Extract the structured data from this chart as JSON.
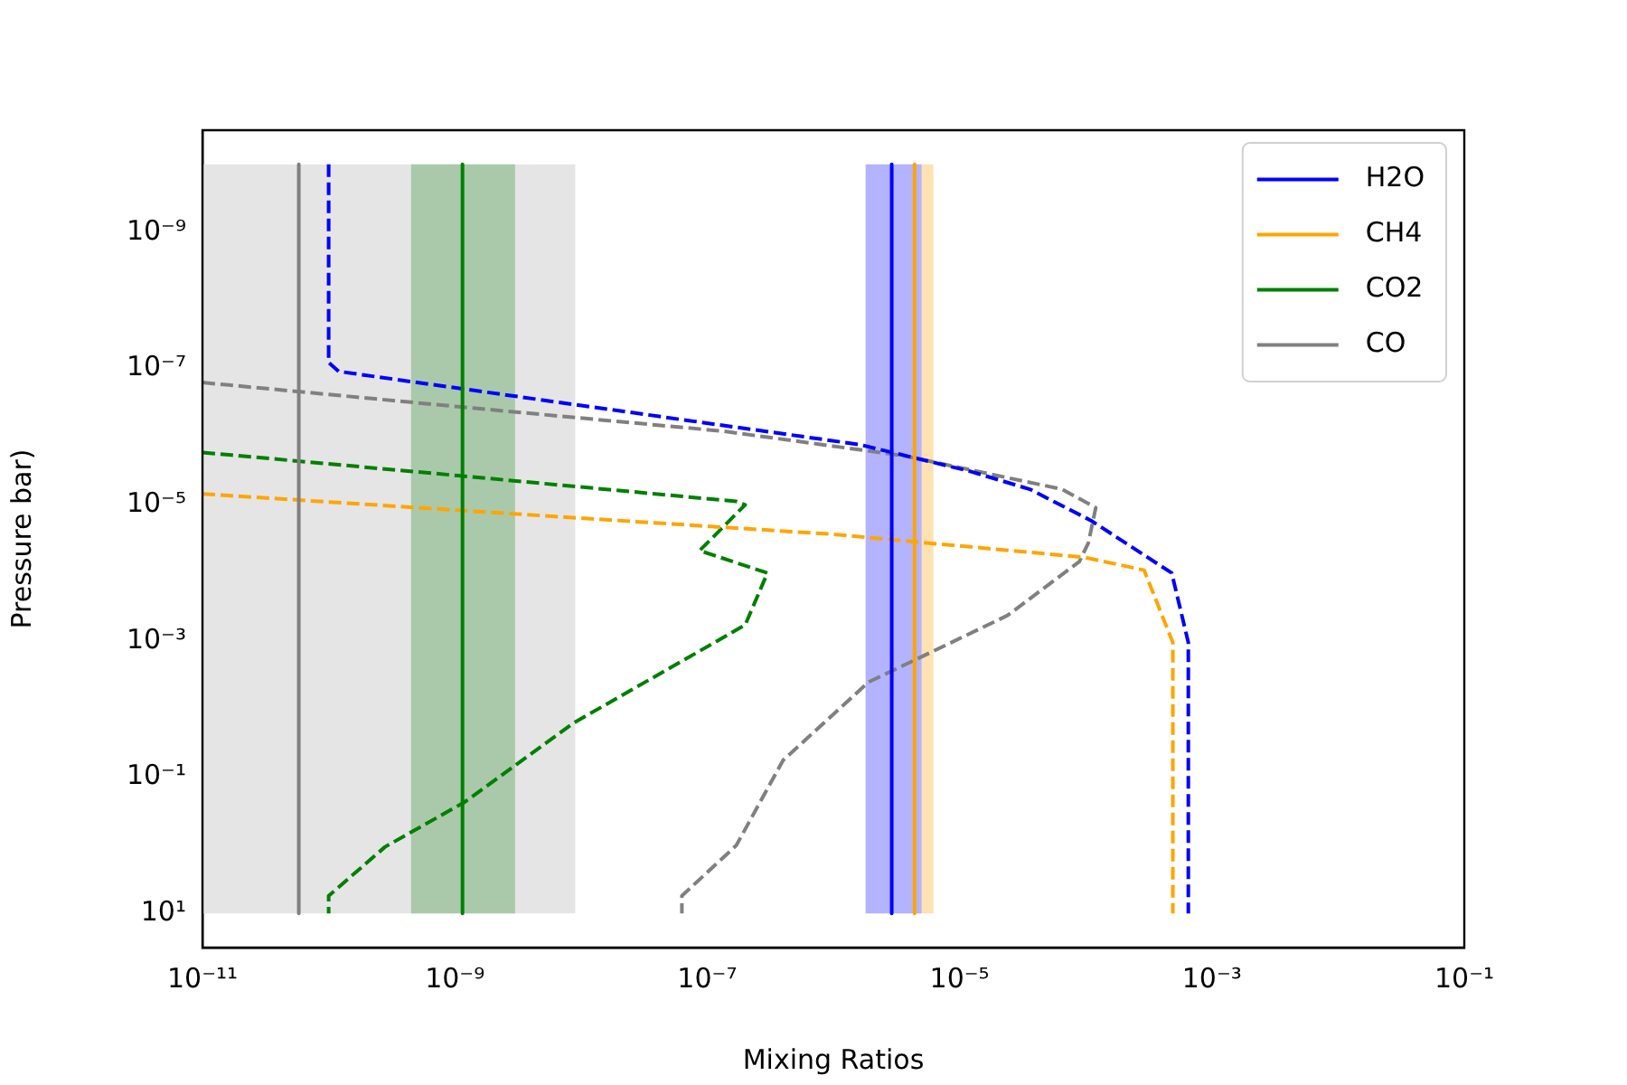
{
  "chart_data": {
    "type": "line",
    "xlabel": "Mixing Ratios",
    "ylabel": "Pressure bar)",
    "log": "xy",
    "legend": "top right",
    "marker": "none",
    "xlim": [
      1e-11,
      0.1
    ],
    "xticks": [
      {
        "value": 1e-11,
        "label": "10⁻¹¹"
      },
      {
        "value": 1e-09,
        "label": "10⁻⁹"
      },
      {
        "value": 1e-07,
        "label": "10⁻⁷"
      },
      {
        "value": 1e-05,
        "label": "10⁻⁵"
      },
      {
        "value": 0.001,
        "label": "10⁻³"
      },
      {
        "value": 0.1,
        "label": "10⁻¹"
      }
    ],
    "ylim": [
      31.6,
      3.16e-11
    ],
    "yticks": [
      {
        "value": 1e-09,
        "label": "10⁻⁹"
      },
      {
        "value": 1e-07,
        "label": "10⁻⁷"
      },
      {
        "value": 1e-05,
        "label": "10⁻⁵"
      },
      {
        "value": 0.001,
        "label": "10⁻³"
      },
      {
        "value": 0.1,
        "label": "10⁻¹"
      },
      {
        "value": 10,
        "label": "10¹"
      }
    ],
    "bands": [
      {
        "axis": "x",
        "from": 1e-11,
        "to": 9e-09,
        "color": "#e5e5e5"
      },
      {
        "axis": "x",
        "from": 4.5e-10,
        "to": 3e-09,
        "color": "#aac9aa"
      },
      {
        "axis": "x",
        "from": 3.1e-06,
        "to": 6.2e-06,
        "color": "#ffe2b3"
      },
      {
        "axis": "x",
        "from": 1.8e-06,
        "to": 5e-06,
        "color": "#b3b3ff"
      }
    ],
    "series": [
      {
        "name": "H2O",
        "color": "#0000ff",
        "line_style": "solid",
        "x": [
          2.9e-06,
          2.9e-06
        ],
        "values": [
          1e-10,
          10
        ]
      },
      {
        "name": "CH4",
        "color": "#ffa500",
        "line_style": "solid",
        "x": [
          4.4e-06,
          4.4e-06
        ],
        "values": [
          1e-10,
          10
        ]
      },
      {
        "name": "CO2",
        "color": "#008000",
        "line_style": "solid",
        "x": [
          1.15e-09,
          1.15e-09
        ],
        "values": [
          1e-10,
          10
        ]
      },
      {
        "name": "CO",
        "color": "#808080",
        "line_style": "solid",
        "x": [
          5.8e-11,
          5.8e-11
        ],
        "values": [
          1e-10,
          10
        ]
      },
      {
        "color": "#0000ff",
        "line_style": "dashed",
        "x": [
          1e-10,
          1e-10,
          1.2e-10,
          1.6e-06,
          1.2e-05,
          3.6e-05,
          0.00011,
          0.00048,
          0.00065,
          0.00065
        ],
        "values": [
          1e-10,
          8.1e-08,
          1.1e-07,
          1.3e-06,
          3.2e-06,
          5.9e-06,
          1.7e-05,
          0.0001,
          0.00105,
          10
        ]
      },
      {
        "color": "#ffa500",
        "line_style": "dashed",
        "x": [
          1e-11,
          9.8e-07,
          9.8e-05,
          0.00029,
          0.00049,
          0.00049
        ],
        "values": [
          6.9e-06,
          2.7e-05,
          5.9e-05,
          9.1e-05,
          0.00105,
          10
        ]
      },
      {
        "color": "#008000",
        "line_style": "dashed",
        "x": [
          1e-11,
          1.2e-09,
          1.7e-07,
          2e-07,
          8.7e-08,
          3e-07,
          2e-07,
          8.7e-09,
          1.2e-09,
          2.8e-10,
          1e-10,
          1e-10
        ],
        "values": [
          1.7e-06,
          3.8e-06,
          8.9e-06,
          1e-05,
          4.7e-05,
          0.0001,
          0.00058,
          0.016,
          0.23,
          1.05,
          5.5,
          10
        ]
      },
      {
        "color": "#808080",
        "line_style": "dashed",
        "x": [
          1e-11,
          1.2e-09,
          1.35e-07,
          3.6e-06,
          6.5e-05,
          0.00012,
          0.000105,
          8.9e-05,
          2.4e-05,
          5e-06,
          1.9e-06,
          4e-07,
          1.7e-07,
          6.3e-08,
          6.3e-08
        ],
        "values": [
          1.6e-07,
          3.7e-07,
          8.3e-07,
          1.9e-06,
          5.9e-06,
          1.1e-05,
          3.6e-05,
          6.8e-05,
          0.00042,
          0.0017,
          0.004,
          0.056,
          1.0,
          5.5,
          10
        ]
      }
    ]
  }
}
